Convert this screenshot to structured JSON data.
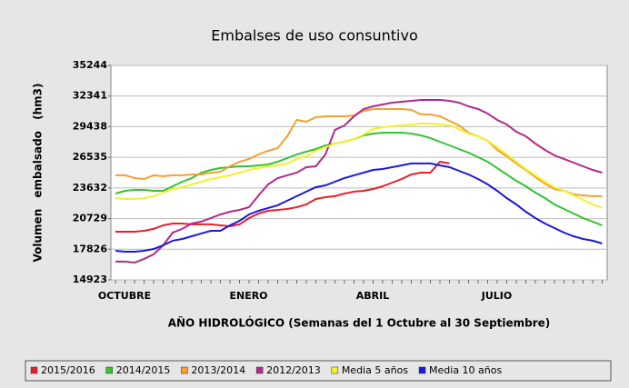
{
  "chart_data": {
    "type": "line",
    "title": "Embalses de uso consuntivo",
    "y_label": "Volumen embalsado (hm3)",
    "x_label": "AÑO HIDROLÓGICO (Semanas del 1 Octubre al 30 Septiembre)",
    "categories": [
      "OCTUBRE",
      null,
      null,
      null,
      null,
      null,
      null,
      null,
      null,
      null,
      null,
      null,
      null,
      "ENERO",
      null,
      null,
      null,
      null,
      null,
      null,
      null,
      null,
      null,
      null,
      null,
      null,
      "ABRIL",
      null,
      null,
      null,
      null,
      null,
      null,
      null,
      null,
      null,
      null,
      null,
      null,
      "JULIO",
      null,
      null,
      null,
      null,
      null,
      null,
      null,
      null,
      null,
      null,
      null,
      null
    ],
    "ylim": [
      14923,
      35244
    ],
    "yticks": [
      14923,
      17826,
      20729,
      23632,
      26535,
      29438,
      32341,
      35244
    ],
    "grid": true,
    "legend": "bottom",
    "series": [
      {
        "name": "2015/2016",
        "color": "#e8202a",
        "values": [
          19490,
          19490,
          19490,
          19570,
          19750,
          20090,
          20260,
          20260,
          20180,
          20180,
          20180,
          20090,
          20000,
          20180,
          20780,
          21210,
          21470,
          21550,
          21640,
          21810,
          22070,
          22590,
          22760,
          22850,
          23100,
          23280,
          23360,
          23530,
          23790,
          24140,
          24480,
          24910,
          25080,
          25080,
          26120,
          25950,
          null,
          null,
          null,
          null,
          null,
          null,
          null,
          null,
          null,
          null,
          null,
          null,
          null,
          null,
          null,
          null
        ]
      },
      {
        "name": "2014/2015",
        "color": "#33c433",
        "values": [
          23100,
          23360,
          23450,
          23450,
          23360,
          23360,
          23790,
          24220,
          24570,
          25080,
          25340,
          25520,
          25600,
          25690,
          25690,
          25770,
          25860,
          26120,
          26460,
          26810,
          27070,
          27320,
          27670,
          27840,
          28010,
          28270,
          28610,
          28790,
          28870,
          28870,
          28870,
          28790,
          28610,
          28360,
          28010,
          27670,
          27320,
          26980,
          26550,
          26120,
          25520,
          24910,
          24310,
          23790,
          23190,
          22670,
          22070,
          21640,
          21210,
          20780,
          20440,
          20090
        ]
      },
      {
        "name": "2013/2014",
        "color": "#f5a030",
        "values": [
          24830,
          24830,
          24570,
          24480,
          24830,
          24740,
          24830,
          24830,
          24910,
          24910,
          25080,
          25170,
          25690,
          26120,
          26380,
          26810,
          27150,
          27410,
          28530,
          30080,
          29910,
          30340,
          30420,
          30420,
          30420,
          30510,
          30940,
          31110,
          31110,
          31110,
          31110,
          31030,
          30600,
          30600,
          30420,
          29990,
          29560,
          28870,
          28530,
          28100,
          27240,
          26630,
          25950,
          25340,
          24650,
          24050,
          23530,
          23360,
          23020,
          22930,
          22850,
          22850
        ]
      },
      {
        "name": "2012/2013",
        "color": "#b02a8a",
        "values": [
          16650,
          16650,
          16560,
          16910,
          17340,
          18200,
          19400,
          19750,
          20260,
          20440,
          20780,
          21120,
          21380,
          21550,
          21810,
          22930,
          23970,
          24570,
          24830,
          25080,
          25600,
          25690,
          26810,
          29130,
          29560,
          30420,
          31110,
          31370,
          31540,
          31710,
          31800,
          31890,
          31970,
          31970,
          31970,
          31890,
          31710,
          31370,
          31110,
          30680,
          30080,
          29650,
          28960,
          28530,
          27840,
          27240,
          26720,
          26380,
          26030,
          25690,
          25340,
          25080
        ]
      },
      {
        "name": "Media 5 años",
        "color": "#f2f22a",
        "values": [
          22670,
          22590,
          22590,
          22670,
          22850,
          23190,
          23530,
          23710,
          23970,
          24220,
          24480,
          24650,
          24830,
          25080,
          25340,
          25520,
          25690,
          25770,
          25950,
          26380,
          26630,
          27150,
          27500,
          27840,
          28010,
          28270,
          28700,
          29220,
          29390,
          29480,
          29560,
          29650,
          29730,
          29730,
          29650,
          29560,
          29220,
          28790,
          28530,
          28100,
          27500,
          26810,
          26120,
          25430,
          24830,
          24220,
          23710,
          23360,
          22930,
          22500,
          22070,
          21730
        ]
      },
      {
        "name": "Media 10 años",
        "color": "#1a1ad8",
        "values": [
          17680,
          17590,
          17590,
          17680,
          17850,
          18200,
          18630,
          18800,
          19060,
          19320,
          19570,
          19570,
          20090,
          20520,
          21120,
          21470,
          21730,
          21990,
          22420,
          22850,
          23280,
          23710,
          23880,
          24220,
          24570,
          24830,
          25080,
          25340,
          25430,
          25600,
          25770,
          25950,
          25950,
          25950,
          25770,
          25600,
          25260,
          24910,
          24480,
          23970,
          23360,
          22670,
          22070,
          21380,
          20780,
          20260,
          19830,
          19400,
          19060,
          18800,
          18630,
          18370
        ]
      }
    ]
  }
}
